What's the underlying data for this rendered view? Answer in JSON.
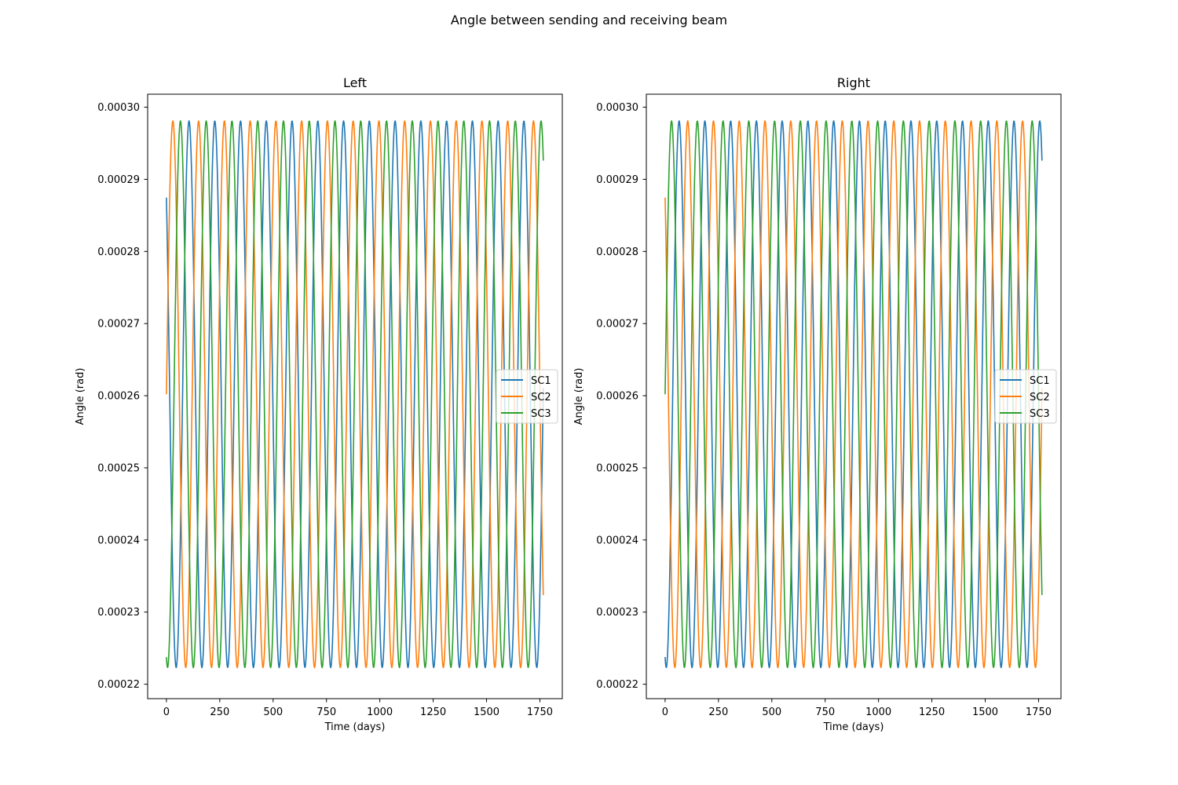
{
  "figure": {
    "suptitle": "Angle between sending and receiving beam"
  },
  "chart_data": [
    {
      "type": "line",
      "title": "Left",
      "xlabel": "Time (days)",
      "ylabel": "Angle (rad)",
      "xlim": [
        -88,
        1855
      ],
      "ylim": [
        0.000218,
        0.0003018
      ],
      "xticks": [
        0,
        250,
        500,
        750,
        1000,
        1250,
        1500,
        1750
      ],
      "xtick_labels": [
        "0",
        "250",
        "500",
        "750",
        "1000",
        "1250",
        "1500",
        "1750"
      ],
      "yticks": [
        0.00022,
        0.00023,
        0.00024,
        0.00025,
        0.00026,
        0.00027,
        0.00028,
        0.00029,
        0.0003
      ],
      "ytick_labels": [
        "0.00022",
        "0.00023",
        "0.00024",
        "0.00025",
        "0.00026",
        "0.00027",
        "0.00028",
        "0.00029",
        "0.00030"
      ],
      "grid": false,
      "legend_position": "center-right",
      "x_range": [
        0,
        1767
      ],
      "sampling_step_days": 2,
      "series": [
        {
          "name": "SC1",
          "color": "#1f77b4",
          "mean": 0.0002602,
          "amplitude": 3.79e-05,
          "period_days": 120.7,
          "phase_at_zero_deg": 44
        },
        {
          "name": "SC2",
          "color": "#ff7f0e",
          "mean": 0.0002602,
          "amplitude": 3.79e-05,
          "period_days": 120.7,
          "phase_at_zero_deg": -90
        },
        {
          "name": "SC3",
          "color": "#2ca02c",
          "mean": 0.0002602,
          "amplitude": 3.79e-05,
          "period_days": 120.7,
          "phase_at_zero_deg": 164
        }
      ]
    },
    {
      "type": "line",
      "title": "Right",
      "xlabel": "Time (days)",
      "ylabel": "Angle (rad)",
      "xlim": [
        -88,
        1855
      ],
      "ylim": [
        0.000218,
        0.0003018
      ],
      "xticks": [
        0,
        250,
        500,
        750,
        1000,
        1250,
        1500,
        1750
      ],
      "xtick_labels": [
        "0",
        "250",
        "500",
        "750",
        "1000",
        "1250",
        "1500",
        "1750"
      ],
      "yticks": [
        0.00022,
        0.00023,
        0.00024,
        0.00025,
        0.00026,
        0.00027,
        0.00028,
        0.00029,
        0.0003
      ],
      "ytick_labels": [
        "0.00022",
        "0.00023",
        "0.00024",
        "0.00025",
        "0.00026",
        "0.00027",
        "0.00028",
        "0.00029",
        "0.00030"
      ],
      "grid": false,
      "legend_position": "center-right",
      "x_range": [
        0,
        1767
      ],
      "sampling_step_days": 2,
      "series": [
        {
          "name": "SC1",
          "color": "#1f77b4",
          "mean": 0.0002602,
          "amplitude": 3.79e-05,
          "period_days": 120.7,
          "phase_at_zero_deg": 164
        },
        {
          "name": "SC2",
          "color": "#ff7f0e",
          "mean": 0.0002602,
          "amplitude": 3.79e-05,
          "period_days": 120.7,
          "phase_at_zero_deg": 44
        },
        {
          "name": "SC3",
          "color": "#2ca02c",
          "mean": 0.0002602,
          "amplitude": 3.79e-05,
          "period_days": 120.7,
          "phase_at_zero_deg": -90
        }
      ]
    }
  ]
}
